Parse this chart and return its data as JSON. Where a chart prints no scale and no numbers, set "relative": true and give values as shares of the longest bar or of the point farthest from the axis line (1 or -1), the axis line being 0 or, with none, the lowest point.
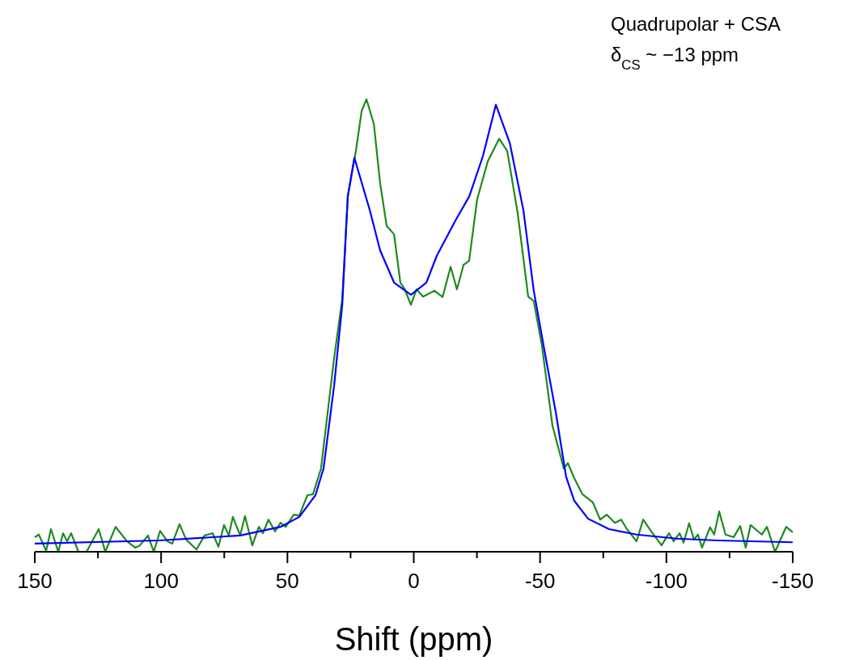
{
  "chart_data": {
    "type": "line",
    "relative": true,
    "xlabel": "Shift (ppm)",
    "annotations": [
      "Quadrupolar + CSA",
      "δ$_{CS}$ ~ −13 ppm"
    ],
    "xlim": [
      150,
      -150
    ],
    "xticks": [
      150,
      {
        "value": 125,
        "label": null
      },
      100,
      {
        "value": 75,
        "label": null
      },
      50,
      {
        "value": 25,
        "label": null
      },
      0,
      {
        "value": -25,
        "label": null
      },
      -50,
      {
        "value": -75,
        "label": null
      },
      -100,
      {
        "value": -125,
        "label": null
      },
      -150
    ],
    "grid": false,
    "line_style": "solid",
    "marker": "none",
    "series": [
      {
        "color": "#1e8a1e",
        "x": [
          150.0,
          148.4,
          145.5,
          143.6,
          140.7,
          138.8,
          137.2,
          135.6,
          132.7,
          129.5,
          124.7,
          122.1,
          118.0,
          113.5,
          110.3,
          108.4,
          105.2,
          102.9,
          100.4,
          97.5,
          95.6,
          92.7,
          90.1,
          86.0,
          82.8,
          79.6,
          77.3,
          75.1,
          73.2,
          71.6,
          68.7,
          66.8,
          63.9,
          61.3,
          59.7,
          57.5,
          54.9,
          52.7,
          50.7,
          47.5,
          45.3,
          42.1,
          39.9,
          36.7,
          31.5,
          28.3,
          26.1,
          22.9,
          20.6,
          18.7,
          15.8,
          13.3,
          10.7,
          7.8,
          5.3,
          3.7,
          1.1,
          -1.1,
          -3.7,
          -8.2,
          -11.4,
          -14.6,
          -17.1,
          -19.7,
          -21.9,
          -25.1,
          -29.3,
          -33.8,
          -37.0,
          -41.1,
          -45.3,
          -47.5,
          -50.7,
          -54.9,
          -59.4,
          -61.0,
          -63.5,
          -66.8,
          -70.9,
          -73.8,
          -76.4,
          -79.6,
          -82.1,
          -84.4,
          -88.2,
          -90.8,
          -94.0,
          -98.1,
          -101.0,
          -102.9,
          -105.2,
          -106.8,
          -109.0,
          -110.9,
          -112.5,
          -114.1,
          -117.3,
          -118.9,
          -120.9,
          -123.4,
          -126.6,
          -129.2,
          -131.4,
          -133.3,
          -137.8,
          -139.8,
          -143.0,
          -147.4,
          -150.0
        ],
        "values": [
          0.032,
          0.038,
          0.002,
          0.05,
          0.0,
          0.041,
          0.023,
          0.041,
          0.0,
          0.0,
          0.05,
          0.0,
          0.055,
          0.023,
          0.009,
          0.014,
          0.036,
          0.0,
          0.046,
          0.023,
          0.018,
          0.061,
          0.027,
          0.005,
          0.036,
          0.041,
          0.011,
          0.059,
          0.036,
          0.077,
          0.036,
          0.079,
          0.014,
          0.055,
          0.041,
          0.071,
          0.045,
          0.064,
          0.055,
          0.082,
          0.08,
          0.125,
          0.127,
          0.184,
          0.429,
          0.559,
          0.786,
          0.886,
          0.975,
          1.0,
          0.946,
          0.814,
          0.72,
          0.702,
          0.595,
          0.582,
          0.546,
          0.58,
          0.564,
          0.577,
          0.563,
          0.63,
          0.58,
          0.634,
          0.643,
          0.779,
          0.863,
          0.913,
          0.886,
          0.75,
          0.564,
          0.554,
          0.457,
          0.279,
          0.184,
          0.196,
          0.163,
          0.127,
          0.109,
          0.071,
          0.082,
          0.064,
          0.071,
          0.05,
          0.023,
          0.071,
          0.045,
          0.014,
          0.041,
          0.023,
          0.041,
          0.02,
          0.063,
          0.027,
          0.038,
          0.009,
          0.054,
          0.038,
          0.089,
          0.038,
          0.032,
          0.057,
          0.009,
          0.059,
          0.038,
          0.055,
          0.0,
          0.055,
          0.043
        ]
      },
      {
        "color": "#0000ff",
        "x": [
          150,
          100.7,
          68.7,
          52.7,
          45.3,
          38.9,
          35.7,
          31.5,
          28.3,
          26.1,
          23.5,
          17.4,
          13.3,
          7.8,
          1.1,
          -5.0,
          -9.1,
          -16.5,
          -22.0,
          -27.4,
          -32.5,
          -38.0,
          -43.4,
          -47.5,
          -51.7,
          -56.2,
          -60.3,
          -63.5,
          -69.0,
          -77.3,
          -88.2,
          -104.2,
          -120.2,
          -150
        ],
        "values": [
          0.018,
          0.025,
          0.036,
          0.055,
          0.077,
          0.125,
          0.184,
          0.368,
          0.546,
          0.786,
          0.871,
          0.755,
          0.666,
          0.595,
          0.568,
          0.595,
          0.654,
          0.732,
          0.786,
          0.875,
          0.988,
          0.904,
          0.755,
          0.577,
          0.446,
          0.309,
          0.166,
          0.113,
          0.073,
          0.05,
          0.038,
          0.029,
          0.025,
          0.021
        ]
      }
    ]
  }
}
